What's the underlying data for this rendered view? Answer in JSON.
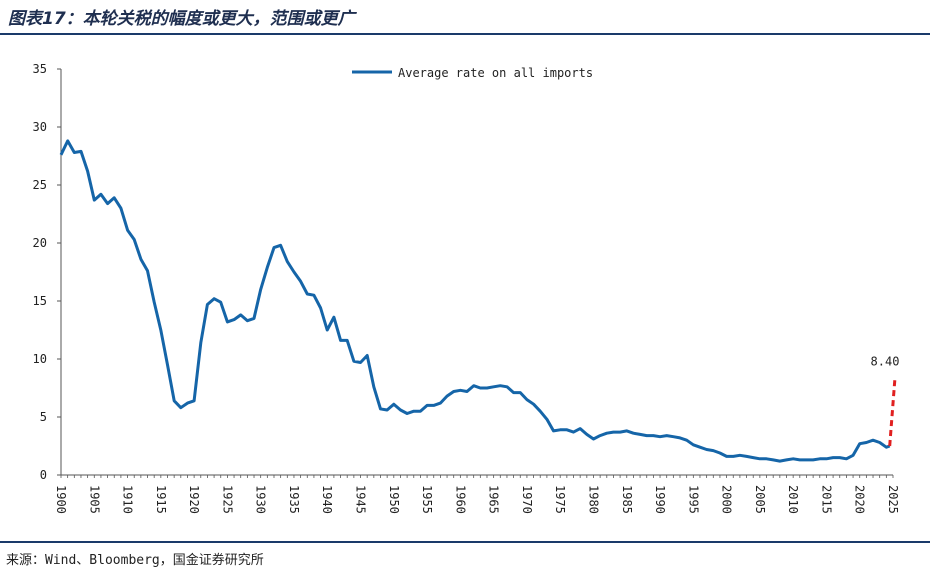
{
  "header": {
    "title": "图表17：本轮关税的幅度或更大，范围或更广"
  },
  "footer": {
    "source": "来源：Wind、Bloomberg，国金证券研究所"
  },
  "colors": {
    "series": "#1565a8",
    "projection": "#e02020",
    "rule": "#1a3a6a"
  },
  "chart_data": {
    "type": "line",
    "title": "图表17：本轮关税的幅度或更大，范围或更广",
    "xlabel": "",
    "ylabel": "",
    "xlim": [
      1900,
      2025
    ],
    "ylim": [
      0,
      35
    ],
    "yticks": [
      0,
      5,
      10,
      15,
      20,
      25,
      30,
      35
    ],
    "xticks": [
      1900,
      1905,
      1910,
      1915,
      1920,
      1925,
      1930,
      1935,
      1940,
      1945,
      1950,
      1955,
      1960,
      1965,
      1970,
      1975,
      1980,
      1985,
      1990,
      1995,
      2000,
      2005,
      2010,
      2015,
      2020,
      2025
    ],
    "grid": false,
    "legend": {
      "placement": "top-center"
    },
    "series": [
      {
        "name": "Average rate on all imports",
        "style": "solid",
        "points": [
          [
            1900,
            27.6
          ],
          [
            1901,
            28.8
          ],
          [
            1902,
            27.8
          ],
          [
            1903,
            27.9
          ],
          [
            1904,
            26.2
          ],
          [
            1905,
            23.7
          ],
          [
            1906,
            24.2
          ],
          [
            1907,
            23.4
          ],
          [
            1908,
            23.9
          ],
          [
            1909,
            23.0
          ],
          [
            1910,
            21.1
          ],
          [
            1911,
            20.3
          ],
          [
            1912,
            18.6
          ],
          [
            1913,
            17.6
          ],
          [
            1914,
            14.9
          ],
          [
            1915,
            12.5
          ],
          [
            1916,
            9.5
          ],
          [
            1917,
            6.4
          ],
          [
            1918,
            5.8
          ],
          [
            1919,
            6.2
          ],
          [
            1920,
            6.4
          ],
          [
            1921,
            11.4
          ],
          [
            1922,
            14.7
          ],
          [
            1923,
            15.2
          ],
          [
            1924,
            14.9
          ],
          [
            1925,
            13.2
          ],
          [
            1926,
            13.4
          ],
          [
            1927,
            13.8
          ],
          [
            1928,
            13.3
          ],
          [
            1929,
            13.5
          ],
          [
            1930,
            16.0
          ],
          [
            1931,
            17.9
          ],
          [
            1932,
            19.6
          ],
          [
            1933,
            19.8
          ],
          [
            1934,
            18.4
          ],
          [
            1935,
            17.5
          ],
          [
            1936,
            16.7
          ],
          [
            1937,
            15.6
          ],
          [
            1938,
            15.5
          ],
          [
            1939,
            14.4
          ],
          [
            1940,
            12.5
          ],
          [
            1941,
            13.6
          ],
          [
            1942,
            11.6
          ],
          [
            1943,
            11.6
          ],
          [
            1944,
            9.8
          ],
          [
            1945,
            9.7
          ],
          [
            1946,
            10.3
          ],
          [
            1947,
            7.6
          ],
          [
            1948,
            5.7
          ],
          [
            1949,
            5.6
          ],
          [
            1950,
            6.1
          ],
          [
            1951,
            5.6
          ],
          [
            1952,
            5.3
          ],
          [
            1953,
            5.5
          ],
          [
            1954,
            5.5
          ],
          [
            1955,
            6.0
          ],
          [
            1956,
            6.0
          ],
          [
            1957,
            6.2
          ],
          [
            1958,
            6.8
          ],
          [
            1959,
            7.2
          ],
          [
            1960,
            7.3
          ],
          [
            1961,
            7.2
          ],
          [
            1962,
            7.7
          ],
          [
            1963,
            7.5
          ],
          [
            1964,
            7.5
          ],
          [
            1965,
            7.6
          ],
          [
            1966,
            7.7
          ],
          [
            1967,
            7.6
          ],
          [
            1968,
            7.1
          ],
          [
            1969,
            7.1
          ],
          [
            1970,
            6.5
          ],
          [
            1971,
            6.1
          ],
          [
            1972,
            5.5
          ],
          [
            1973,
            4.8
          ],
          [
            1974,
            3.8
          ],
          [
            1975,
            3.9
          ],
          [
            1976,
            3.9
          ],
          [
            1977,
            3.7
          ],
          [
            1978,
            4.0
          ],
          [
            1979,
            3.5
          ],
          [
            1980,
            3.1
          ],
          [
            1981,
            3.4
          ],
          [
            1982,
            3.6
          ],
          [
            1983,
            3.7
          ],
          [
            1984,
            3.7
          ],
          [
            1985,
            3.8
          ],
          [
            1986,
            3.6
          ],
          [
            1987,
            3.5
          ],
          [
            1988,
            3.4
          ],
          [
            1989,
            3.4
          ],
          [
            1990,
            3.3
          ],
          [
            1991,
            3.4
          ],
          [
            1992,
            3.3
          ],
          [
            1993,
            3.2
          ],
          [
            1994,
            3.0
          ],
          [
            1995,
            2.6
          ],
          [
            1996,
            2.4
          ],
          [
            1997,
            2.2
          ],
          [
            1998,
            2.1
          ],
          [
            1999,
            1.9
          ],
          [
            2000,
            1.6
          ],
          [
            2001,
            1.6
          ],
          [
            2002,
            1.7
          ],
          [
            2003,
            1.6
          ],
          [
            2004,
            1.5
          ],
          [
            2005,
            1.4
          ],
          [
            2006,
            1.4
          ],
          [
            2007,
            1.3
          ],
          [
            2008,
            1.2
          ],
          [
            2009,
            1.3
          ],
          [
            2010,
            1.4
          ],
          [
            2011,
            1.3
          ],
          [
            2012,
            1.3
          ],
          [
            2013,
            1.3
          ],
          [
            2014,
            1.4
          ],
          [
            2015,
            1.4
          ],
          [
            2016,
            1.5
          ],
          [
            2017,
            1.5
          ],
          [
            2018,
            1.4
          ],
          [
            2019,
            1.7
          ],
          [
            2020,
            2.7
          ],
          [
            2021,
            2.8
          ],
          [
            2022,
            3.0
          ],
          [
            2023,
            2.8
          ],
          [
            2024,
            2.4
          ],
          [
            2024.5,
            2.5
          ]
        ]
      },
      {
        "name": "",
        "style": "dashed",
        "points": [
          [
            2024.5,
            2.5
          ],
          [
            2025.3,
            8.4
          ]
        ]
      }
    ],
    "annotations": [
      {
        "text": "8.40",
        "x": 2025,
        "y": 8.4
      }
    ]
  }
}
